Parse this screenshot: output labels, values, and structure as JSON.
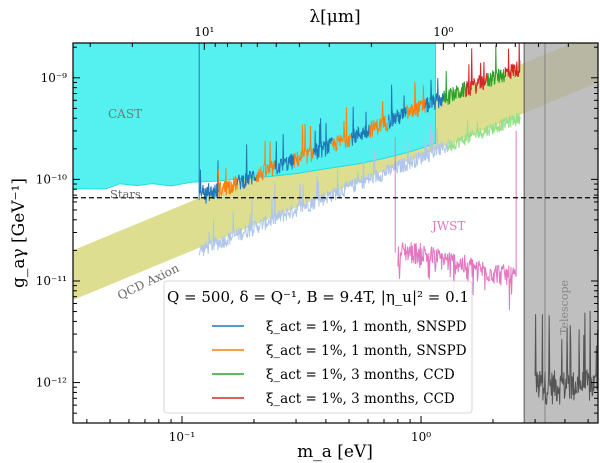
{
  "chart_data": {
    "type": "line",
    "xlabel": "m_a [eV]",
    "ylabel": "g_aγ [GeV⁻¹]",
    "top_axis_label": "λ[μm]",
    "xscale": "log",
    "yscale": "log",
    "xlim": [
      0.035,
      5.5
    ],
    "ylim": [
      4e-13,
      2.2e-09
    ],
    "x_ticks": [
      {
        "value": 0.1,
        "label": "10⁻¹"
      },
      {
        "value": 1,
        "label": "10⁰"
      }
    ],
    "y_ticks": [
      {
        "value": 1e-12,
        "label": "10⁻¹²"
      },
      {
        "value": 1e-11,
        "label": "10⁻¹¹"
      },
      {
        "value": 1e-10,
        "label": "10⁻¹⁰"
      },
      {
        "value": 1e-09,
        "label": "10⁻⁹"
      }
    ],
    "top_ticks": [
      {
        "value": 10,
        "label": "10¹"
      },
      {
        "value": 1,
        "label": "10⁰"
      }
    ],
    "legend": {
      "title": "Q = 500, δ = Q⁻¹, B = 9.4T, |η_u|² = 0.1",
      "placement": "lower-center",
      "entries": [
        {
          "label": "ξ_act = 1%, 1 month, SNSPD",
          "color": "#1f77b4"
        },
        {
          "label": "ξ_act = 1%, 1 month, SNSPD",
          "color": "#ff7f0e"
        },
        {
          "label": "ξ_act = 1%, 3 months, CCD",
          "color": "#2ca02c"
        },
        {
          "label": "ξ_act = 1%, 3 months, CCD",
          "color": "#d62728"
        }
      ]
    },
    "regions": [
      {
        "name": "CAST",
        "color": "#55f0f0",
        "limit_g": 6.6e-11
      },
      {
        "name": "Stars",
        "color": "#000000",
        "limit_g": 6.6e-11
      },
      {
        "name": "JWST",
        "color": "#e377c2",
        "x_range": [
          0.78,
          2.5
        ]
      },
      {
        "name": "Telescope",
        "color": "#a9a9a9",
        "x_range": [
          2.7,
          5.5
        ]
      },
      {
        "name": "QCD Axion",
        "color": "#bcbd22"
      }
    ],
    "series": [
      {
        "color": "#1f77b4",
        "x": [
          0.118,
          0.155,
          0.2,
          0.26,
          0.33,
          0.42,
          0.54,
          0.68
        ],
        "y": [
          6.3e-11,
          8.1e-11,
          1.02e-10,
          1.3e-10,
          1.62e-10,
          2.05e-10,
          2.6e-10,
          3.3e-10
        ]
      },
      {
        "color": "#ff7f0e",
        "x": [
          0.155,
          0.2,
          0.26,
          0.33,
          0.42,
          0.54,
          0.68,
          0.86,
          1.1
        ],
        "y": [
          8.1e-11,
          1.02e-10,
          1.3e-10,
          1.62e-10,
          2.05e-10,
          2.6e-10,
          3.3e-10,
          4.2e-10,
          5.3e-10
        ]
      },
      {
        "color": "#2ca02c",
        "x": [
          1.45,
          1.85,
          2.3
        ],
        "y": [
          6.9e-10,
          8.8e-10,
          1.05e-09
        ]
      },
      {
        "color": "#d62728",
        "x": [
          1.6,
          2.05,
          2.6
        ],
        "y": [
          7.6e-10,
          9.6e-10,
          1.2e-09
        ]
      },
      {
        "color": "#aec7e8",
        "x": [
          0.118,
          0.2,
          0.33,
          0.54,
          0.86,
          1.3
        ],
        "y": [
          1.9e-11,
          3.2e-11,
          5.3e-11,
          8.6e-11,
          1.35e-10,
          2.05e-10
        ]
      },
      {
        "color": "#98df8a",
        "x": [
          1.3,
          1.8,
          2.6
        ],
        "y": [
          2.05e-10,
          2.8e-10,
          3.9e-10
        ]
      }
    ]
  }
}
